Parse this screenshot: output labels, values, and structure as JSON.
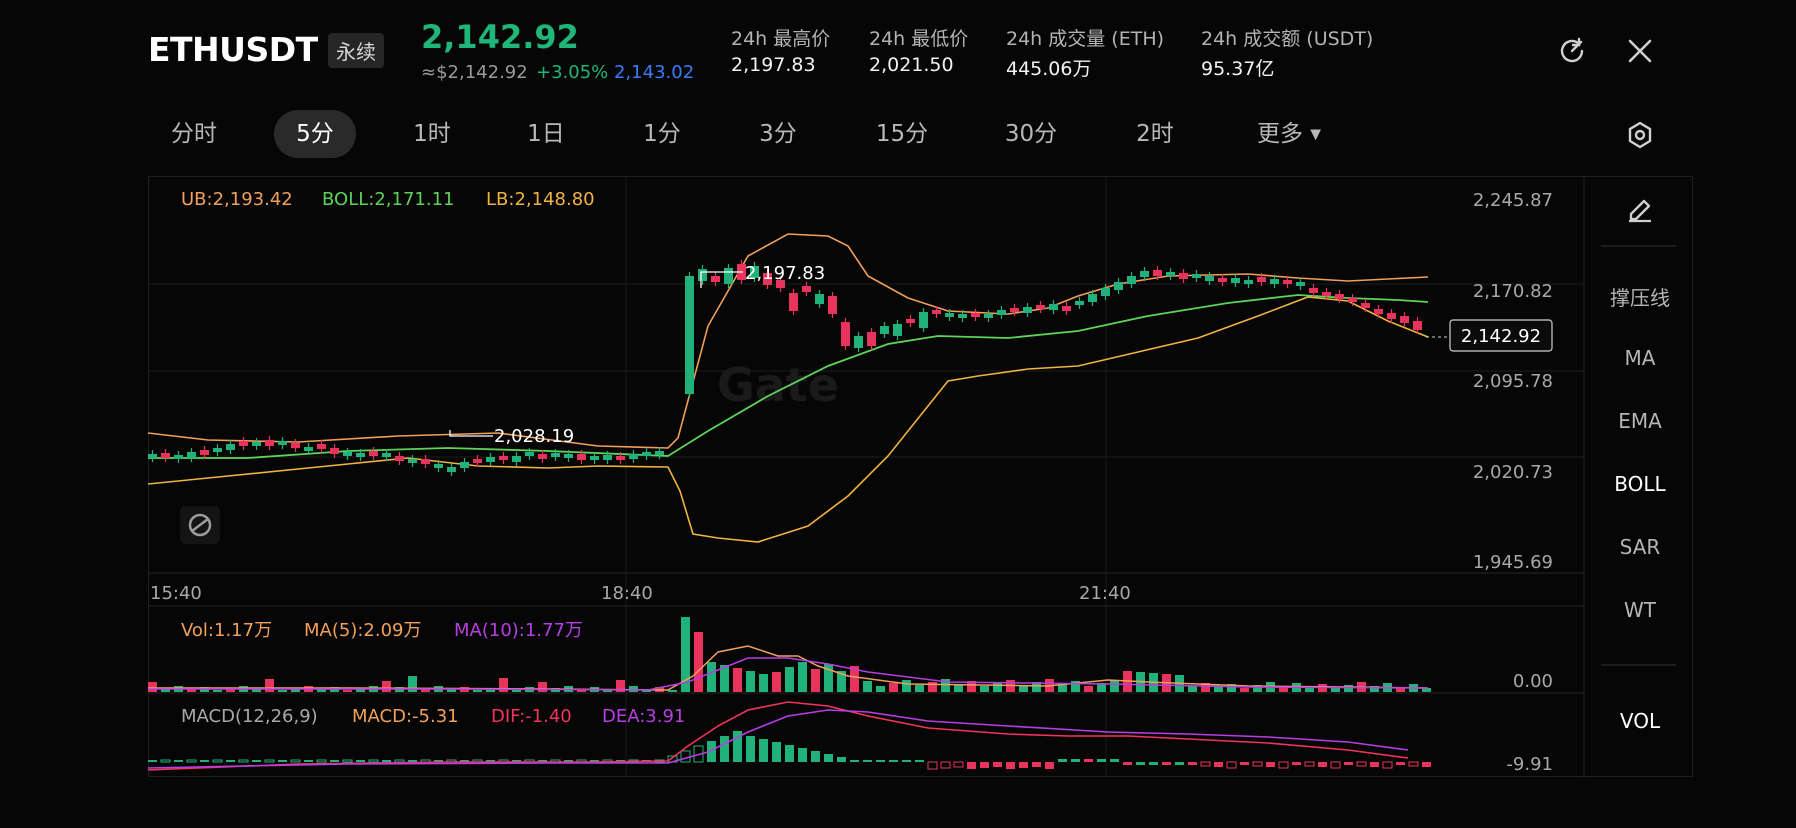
{
  "header": {
    "symbol": "ETHUSDT",
    "badge": "永续",
    "price": "2,142.92",
    "price_usd": "≈$2,142.92",
    "change": "+3.05%",
    "mark_price": "2,143.02",
    "stats": [
      {
        "label": "24h 最高价",
        "value": "2,197.83"
      },
      {
        "label": "24h 最低价",
        "value": "2,021.50"
      },
      {
        "label": "24h 成交量 (ETH)",
        "value": "445.06万"
      },
      {
        "label": "24h 成交额 (USDT)",
        "value": "95.37亿"
      }
    ],
    "icons": [
      "refresh-icon",
      "close-icon"
    ]
  },
  "tabs": [
    {
      "label": "分时",
      "active": false
    },
    {
      "label": "5分",
      "active": true
    },
    {
      "label": "1时",
      "active": false
    },
    {
      "label": "1日",
      "active": false
    },
    {
      "label": "1分",
      "active": false
    },
    {
      "label": "3分",
      "active": false
    },
    {
      "label": "15分",
      "active": false
    },
    {
      "label": "30分",
      "active": false
    },
    {
      "label": "2时",
      "active": false
    },
    {
      "label": "更多",
      "active": false
    }
  ],
  "toolbar_icons": [
    "settings-icon",
    "draw-icon"
  ],
  "main_chart": {
    "legend": {
      "ub": "UB:2,193.42",
      "boll": "BOLL:2,171.11",
      "lb": "LB:2,148.80"
    },
    "price_axis": [
      "2,245.87",
      "2,170.82",
      "2,095.78",
      "2,020.73",
      "1,945.69"
    ],
    "time_axis": [
      "15:40",
      "18:40",
      "21:40"
    ],
    "high_marker": "2,197.83",
    "low_marker": "2,028.19",
    "current_price_tag": "2,142.92",
    "watermark": "Gate"
  },
  "volume_panel": {
    "vol": "Vol:1.17万",
    "ma5": "MA(5):2.09万",
    "ma10": "MA(10):1.77万",
    "axis": "0.00"
  },
  "macd_panel": {
    "title": "MACD(12,26,9)",
    "macd": "MACD:-5.31",
    "dif": "DIF:-1.40",
    "dea": "DEA:3.91",
    "axis": "-9.91"
  },
  "side_menu": [
    {
      "label": "撑压线",
      "active": false
    },
    {
      "label": "MA",
      "active": false
    },
    {
      "label": "EMA",
      "active": false
    },
    {
      "label": "BOLL",
      "active": true
    },
    {
      "label": "SAR",
      "active": false
    },
    {
      "label": "WT",
      "active": false
    }
  ],
  "side_vol": "VOL",
  "colors": {
    "up": "#20b27a",
    "down": "#e8345c",
    "ub": "#f0a05a",
    "boll": "#5ed35a",
    "lb": "#f0b340",
    "dea": "#b53fe0",
    "dif": "#f0345c",
    "blue": "#3b7cf6"
  }
}
